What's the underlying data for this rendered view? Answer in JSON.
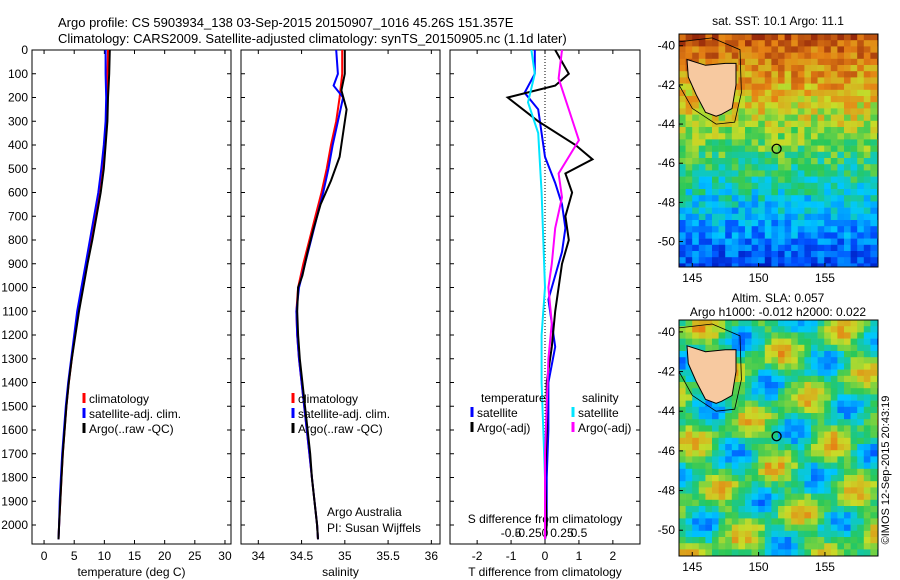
{
  "header": {
    "line1": "Argo profile: CS 5903934_138 03-Sep-2015 20150907_1016 45.26S 151.357E",
    "line2": "Climatology: CARS2009. Satellite-adjusted climatology: synTS_20150905.nc (1.1d later)"
  },
  "timestamp": "©IMOS 12-Sep-2015 20:43:19",
  "colors": {
    "climatology": "#ff0000",
    "satellite": "#0000ff",
    "argo": "#000000",
    "salinity_satellite": "#00e5ff",
    "salinity_argo": "#ff00ff"
  },
  "chart_data": [
    {
      "type": "line",
      "xlabel": "temperature (deg C)",
      "ylabel": "",
      "xlim": [
        -2,
        31
      ],
      "ylim": [
        2080,
        0
      ],
      "xticks": [
        "0",
        "5",
        "10",
        "15",
        "20",
        "25",
        "30"
      ],
      "yticks": [
        "0",
        "100",
        "200",
        "300",
        "400",
        "500",
        "600",
        "700",
        "800",
        "900",
        "1000",
        "1100",
        "1200",
        "1300",
        "1400",
        "1500",
        "1600",
        "1700",
        "1800",
        "1900",
        "2000"
      ],
      "ytick_values": [
        0,
        100,
        200,
        300,
        400,
        500,
        600,
        700,
        800,
        900,
        1000,
        1100,
        1200,
        1300,
        1400,
        1500,
        1600,
        1700,
        1800,
        1900,
        2000
      ],
      "legend": [
        "climatology",
        "satellite-adj. clim.",
        "Argo(..raw -QC)"
      ],
      "series": [
        {
          "name": "climatology",
          "color": "#ff0000",
          "points": [
            [
              10.6,
              0
            ],
            [
              10.5,
              100
            ],
            [
              10.5,
              200
            ],
            [
              10.3,
              300
            ],
            [
              10.0,
              400
            ],
            [
              9.6,
              500
            ],
            [
              9.1,
              600
            ],
            [
              8.5,
              700
            ],
            [
              7.8,
              800
            ],
            [
              7.1,
              900
            ],
            [
              6.4,
              1000
            ],
            [
              5.7,
              1100
            ],
            [
              5.1,
              1200
            ],
            [
              4.6,
              1300
            ],
            [
              4.1,
              1400
            ],
            [
              3.7,
              1500
            ],
            [
              3.4,
              1600
            ],
            [
              3.1,
              1700
            ],
            [
              2.9,
              1800
            ],
            [
              2.7,
              1900
            ],
            [
              2.5,
              2000
            ],
            [
              2.4,
              2060
            ]
          ]
        },
        {
          "name": "satellite-adj. clim.",
          "color": "#0000ff",
          "points": [
            [
              10.2,
              0
            ],
            [
              10.2,
              100
            ],
            [
              10.3,
              200
            ],
            [
              10.2,
              300
            ],
            [
              9.9,
              400
            ],
            [
              9.5,
              500
            ],
            [
              9.0,
              600
            ],
            [
              8.3,
              700
            ],
            [
              7.6,
              800
            ],
            [
              6.9,
              900
            ],
            [
              6.2,
              1000
            ],
            [
              5.5,
              1100
            ],
            [
              5.0,
              1200
            ],
            [
              4.5,
              1300
            ],
            [
              4.0,
              1400
            ],
            [
              3.6,
              1500
            ],
            [
              3.3,
              1600
            ],
            [
              3.0,
              1700
            ],
            [
              2.8,
              1800
            ],
            [
              2.6,
              1900
            ],
            [
              2.5,
              2000
            ],
            [
              2.4,
              2060
            ]
          ]
        },
        {
          "name": "Argo(..raw -QC)",
          "color": "#000000",
          "points": [
            [
              10.9,
              0
            ],
            [
              10.8,
              100
            ],
            [
              10.6,
              200
            ],
            [
              10.5,
              300
            ],
            [
              10.2,
              400
            ],
            [
              9.9,
              500
            ],
            [
              9.4,
              600
            ],
            [
              8.7,
              700
            ],
            [
              8.0,
              800
            ],
            [
              7.2,
              900
            ],
            [
              6.5,
              1000
            ],
            [
              5.8,
              1100
            ],
            [
              5.2,
              1200
            ],
            [
              4.6,
              1300
            ],
            [
              4.1,
              1400
            ],
            [
              3.7,
              1500
            ],
            [
              3.4,
              1600
            ],
            [
              3.1,
              1700
            ],
            [
              2.9,
              1800
            ],
            [
              2.7,
              1900
            ],
            [
              2.5,
              2000
            ],
            [
              2.4,
              2060
            ]
          ]
        }
      ]
    },
    {
      "type": "line",
      "xlabel": "salinity",
      "xlim": [
        33.8,
        36.1
      ],
      "ylim": [
        2080,
        0
      ],
      "xticks": [
        "34",
        "34.5",
        "35",
        "35.5",
        "36"
      ],
      "legend": [
        "climatology",
        "satellite-adj. clim.",
        "Argo(..raw -QC)"
      ],
      "annotations": [
        "Argo Australia",
        "PI: Susan Wijffels"
      ],
      "series": [
        {
          "name": "climatology",
          "color": "#ff0000",
          "points": [
            [
              34.97,
              0
            ],
            [
              34.97,
              100
            ],
            [
              34.94,
              200
            ],
            [
              34.9,
              300
            ],
            [
              34.84,
              400
            ],
            [
              34.79,
              500
            ],
            [
              34.73,
              600
            ],
            [
              34.66,
              700
            ],
            [
              34.59,
              800
            ],
            [
              34.52,
              900
            ],
            [
              34.46,
              1000
            ],
            [
              34.44,
              1100
            ],
            [
              34.45,
              1200
            ],
            [
              34.47,
              1300
            ],
            [
              34.5,
              1400
            ],
            [
              34.53,
              1500
            ],
            [
              34.56,
              1600
            ],
            [
              34.59,
              1700
            ],
            [
              34.62,
              1800
            ],
            [
              34.65,
              1900
            ],
            [
              34.68,
              2000
            ],
            [
              34.69,
              2060
            ]
          ]
        },
        {
          "name": "satellite-adj. clim.",
          "color": "#0000ff",
          "points": [
            [
              34.9,
              0
            ],
            [
              34.92,
              100
            ],
            [
              34.87,
              150
            ],
            [
              34.98,
              200
            ],
            [
              34.92,
              300
            ],
            [
              34.86,
              400
            ],
            [
              34.81,
              500
            ],
            [
              34.75,
              600
            ],
            [
              34.68,
              700
            ],
            [
              34.61,
              800
            ],
            [
              34.54,
              900
            ],
            [
              34.47,
              1000
            ],
            [
              34.44,
              1100
            ],
            [
              34.45,
              1200
            ],
            [
              34.47,
              1300
            ],
            [
              34.5,
              1400
            ],
            [
              34.53,
              1500
            ],
            [
              34.56,
              1600
            ],
            [
              34.59,
              1700
            ],
            [
              34.62,
              1800
            ],
            [
              34.65,
              1900
            ],
            [
              34.68,
              2000
            ],
            [
              34.69,
              2060
            ]
          ]
        },
        {
          "name": "Argo(..raw -QC)",
          "color": "#000000",
          "points": [
            [
              35.0,
              0
            ],
            [
              35.0,
              100
            ],
            [
              34.96,
              170
            ],
            [
              35.02,
              250
            ],
            [
              34.98,
              350
            ],
            [
              34.94,
              450
            ],
            [
              34.84,
              550
            ],
            [
              34.72,
              650
            ],
            [
              34.64,
              750
            ],
            [
              34.57,
              850
            ],
            [
              34.51,
              950
            ],
            [
              34.46,
              1000
            ],
            [
              34.45,
              1100
            ],
            [
              34.46,
              1200
            ],
            [
              34.48,
              1300
            ],
            [
              34.51,
              1400
            ],
            [
              34.54,
              1500
            ],
            [
              34.57,
              1600
            ],
            [
              34.6,
              1700
            ],
            [
              34.62,
              1800
            ],
            [
              34.65,
              1900
            ],
            [
              34.68,
              2000
            ],
            [
              34.69,
              2060
            ]
          ]
        }
      ]
    },
    {
      "type": "line",
      "xlabel": "T difference from climatology",
      "xlabel_top": "S difference from climatology",
      "xlim": [
        -2.8,
        2.8
      ],
      "ylim": [
        2080,
        0
      ],
      "xticks": [
        "-2",
        "-1",
        "0",
        "1",
        "2"
      ],
      "xticks_s": [
        "-0.5",
        "-0.25",
        "0",
        "0.25",
        "0.5"
      ],
      "legend_temperature_title": "temperature",
      "legend_salinity_title": "salinity",
      "legend": [
        "satellite",
        "Argo(-adj)",
        "satellite",
        "Argo(-adj)"
      ],
      "series": [
        {
          "name": "satellite",
          "color": "#0000ff",
          "group": "temperature",
          "points": [
            [
              -0.3,
              0
            ],
            [
              -0.3,
              100
            ],
            [
              -0.6,
              180
            ],
            [
              -0.2,
              250
            ],
            [
              -0.1,
              350
            ],
            [
              0,
              450
            ],
            [
              0.3,
              560
            ],
            [
              0.5,
              650
            ],
            [
              0.6,
              750
            ],
            [
              0.5,
              850
            ],
            [
              0.3,
              950
            ],
            [
              0.1,
              1050
            ],
            [
              0.2,
              1150
            ],
            [
              0.3,
              1250
            ],
            [
              0.1,
              1400
            ],
            [
              0.1,
              1600
            ],
            [
              0.05,
              1800
            ],
            [
              0.05,
              2000
            ],
            [
              0,
              2060
            ]
          ]
        },
        {
          "name": "Argo(-adj)",
          "color": "#000000",
          "group": "temperature",
          "points": [
            [
              0.3,
              0
            ],
            [
              0.5,
              50
            ],
            [
              0.7,
              100
            ],
            [
              0.3,
              150
            ],
            [
              -1.1,
              200
            ],
            [
              -0.2,
              300
            ],
            [
              0.9,
              400
            ],
            [
              1.4,
              460
            ],
            [
              0.6,
              520
            ],
            [
              0.8,
              600
            ],
            [
              0.6,
              700
            ],
            [
              0.7,
              800
            ],
            [
              0.5,
              900
            ],
            [
              0.4,
              1000
            ],
            [
              0.3,
              1100
            ],
            [
              0.2,
              1250
            ],
            [
              0.05,
              1400
            ],
            [
              0.05,
              1600
            ],
            [
              0,
              1800
            ],
            [
              0.05,
              2000
            ],
            [
              0,
              2060
            ]
          ]
        },
        {
          "name": "satellite",
          "color": "#00e5ff",
          "group": "salinity",
          "points": [
            [
              -0.4,
              0
            ],
            [
              -0.3,
              100
            ],
            [
              -0.5,
              220
            ],
            [
              -0.2,
              350
            ],
            [
              -0.1,
              600
            ],
            [
              -0.05,
              800
            ],
            [
              0,
              1000
            ],
            [
              -0.1,
              1200
            ],
            [
              -0.1,
              1400
            ],
            [
              -0.05,
              1600
            ],
            [
              0,
              1800
            ],
            [
              0,
              2000
            ],
            [
              0,
              2060
            ]
          ]
        },
        {
          "name": "Argo(-adj)",
          "color": "#ff00ff",
          "group": "salinity",
          "points": [
            [
              0.5,
              0
            ],
            [
              0.4,
              120
            ],
            [
              0.7,
              250
            ],
            [
              1.0,
              380
            ],
            [
              0.4,
              520
            ],
            [
              0.5,
              620
            ],
            [
              0.3,
              750
            ],
            [
              0.2,
              900
            ],
            [
              0.1,
              1000
            ],
            [
              0.2,
              1150
            ],
            [
              0.1,
              1300
            ],
            [
              0.05,
              1500
            ],
            [
              0,
              1700
            ],
            [
              0,
              2000
            ],
            [
              0,
              2060
            ]
          ]
        }
      ]
    }
  ],
  "maps": {
    "top": {
      "title": "sat. SST: 10.1  Argo: 11.1",
      "xticks": [
        "145",
        "150",
        "155"
      ],
      "yticks": [
        "-40",
        "-42",
        "-44",
        "-46",
        "-48",
        "-50"
      ],
      "lon_range": [
        144,
        159
      ],
      "lat_range": [
        -51.3,
        -39.4
      ],
      "marker": [
        151.357,
        -45.26
      ]
    },
    "bottom": {
      "title_line1": "Altim. SLA: 0.057",
      "title_line2": "Argo h1000: -0.012  h2000: 0.022",
      "xticks": [
        "145",
        "150",
        "155"
      ],
      "yticks": [
        "-40",
        "-42",
        "-44",
        "-46",
        "-48",
        "-50"
      ],
      "lon_range": [
        144,
        159
      ],
      "lat_range": [
        -51.3,
        -39.4
      ],
      "marker": [
        151.357,
        -45.26
      ]
    }
  }
}
